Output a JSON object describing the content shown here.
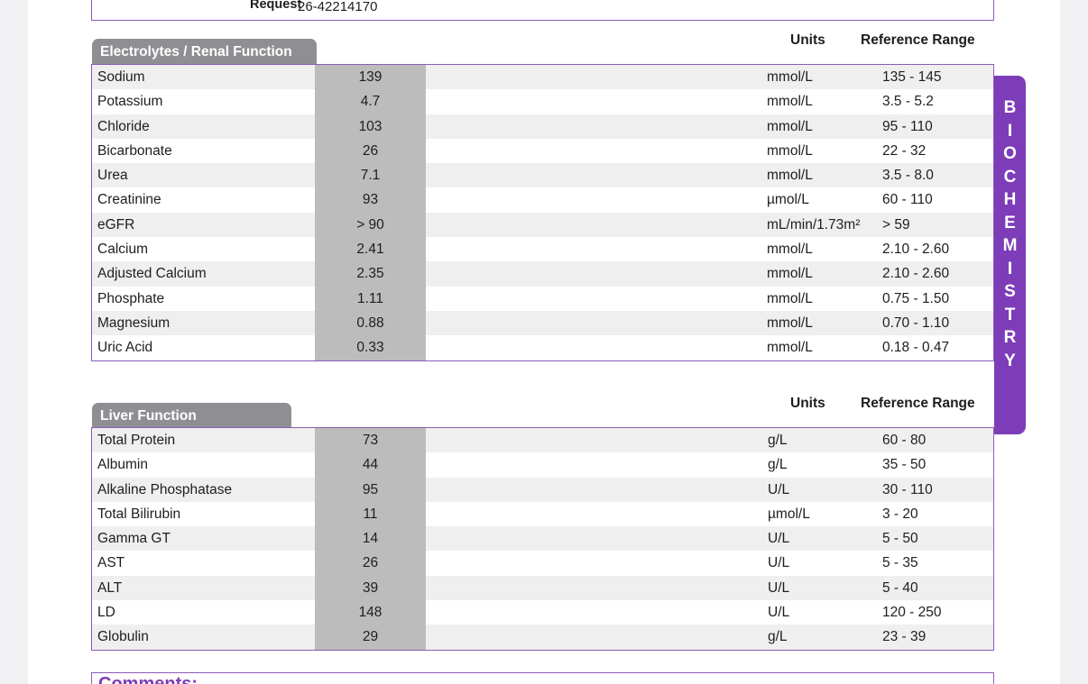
{
  "request": {
    "label": "Request",
    "value": "26-42214170"
  },
  "column_headers": {
    "units": "Units",
    "reference_range": "Reference Range"
  },
  "side_tab": {
    "label": "BIOCHEMISTRY"
  },
  "electrolytes": {
    "title": "Electrolytes / Renal Function",
    "rows": [
      {
        "name": "Sodium",
        "value": "139",
        "units": "mmol/L",
        "range": "135 - 145"
      },
      {
        "name": "Potassium",
        "value": "4.7",
        "units": "mmol/L",
        "range": "3.5 - 5.2"
      },
      {
        "name": "Chloride",
        "value": "103",
        "units": "mmol/L",
        "range": "95 - 110"
      },
      {
        "name": "Bicarbonate",
        "value": "26",
        "units": "mmol/L",
        "range": "22 - 32"
      },
      {
        "name": "Urea",
        "value": "7.1",
        "units": "mmol/L",
        "range": "3.5 - 8.0"
      },
      {
        "name": "Creatinine",
        "value": "93",
        "units": "µmol/L",
        "range": "60 - 110"
      },
      {
        "name": "eGFR",
        "value": "> 90",
        "units": "mL/min/1.73m²",
        "range": "> 59"
      },
      {
        "name": "Calcium",
        "value": "2.41",
        "units": "mmol/L",
        "range": "2.10 - 2.60"
      },
      {
        "name": "Adjusted Calcium",
        "value": "2.35",
        "units": "mmol/L",
        "range": "2.10 - 2.60"
      },
      {
        "name": "Phosphate",
        "value": "1.11",
        "units": "mmol/L",
        "range": "0.75 - 1.50"
      },
      {
        "name": "Magnesium",
        "value": "0.88",
        "units": "mmol/L",
        "range": "0.70 - 1.10"
      },
      {
        "name": "Uric Acid",
        "value": "0.33",
        "units": "mmol/L",
        "range": "0.18 - 0.47"
      }
    ]
  },
  "liver": {
    "title": "Liver Function",
    "rows": [
      {
        "name": "Total Protein",
        "value": "73",
        "units": "g/L",
        "range": "60 - 80"
      },
      {
        "name": "Albumin",
        "value": "44",
        "units": "g/L",
        "range": "35 - 50"
      },
      {
        "name": "Alkaline Phosphatase",
        "value": "95",
        "units": "U/L",
        "range": "30 - 110"
      },
      {
        "name": "Total Bilirubin",
        "value": "11",
        "units": "µmol/L",
        "range": "3 - 20"
      },
      {
        "name": "Gamma GT",
        "value": "14",
        "units": "U/L",
        "range": "5 - 50"
      },
      {
        "name": "AST",
        "value": "26",
        "units": "U/L",
        "range": "5 - 35"
      },
      {
        "name": "ALT",
        "value": "39",
        "units": "U/L",
        "range": "5 - 40"
      },
      {
        "name": "LD",
        "value": "148",
        "units": "U/L",
        "range": "120 - 250"
      },
      {
        "name": "Globulin",
        "value": "29",
        "units": "g/L",
        "range": "23 - 39"
      }
    ]
  },
  "comments": {
    "label": "Comments:"
  }
}
